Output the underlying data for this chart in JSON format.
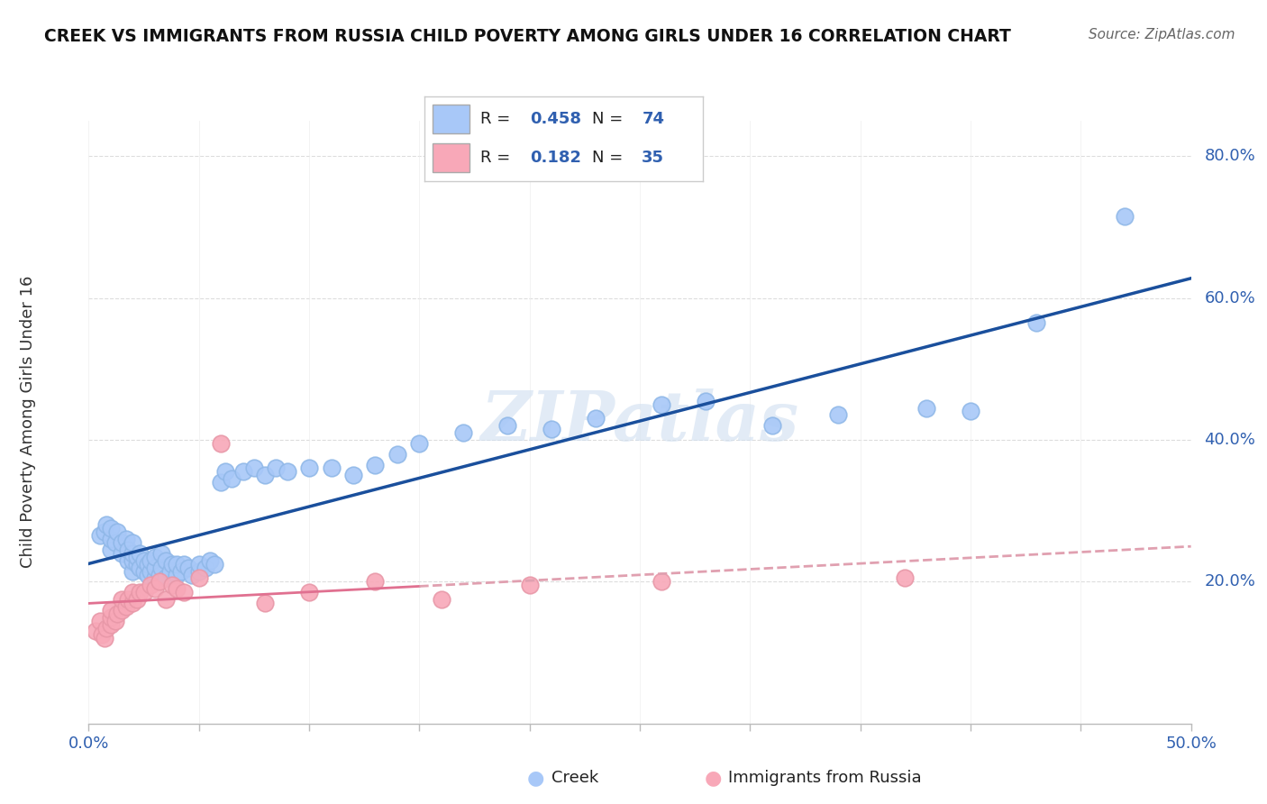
{
  "title": "CREEK VS IMMIGRANTS FROM RUSSIA CHILD POVERTY AMONG GIRLS UNDER 16 CORRELATION CHART",
  "source": "Source: ZipAtlas.com",
  "ylabel": "Child Poverty Among Girls Under 16",
  "xlim": [
    0.0,
    0.5
  ],
  "ylim": [
    0.0,
    0.85
  ],
  "xtick_positions": [
    0.0,
    0.05,
    0.1,
    0.15,
    0.2,
    0.25,
    0.3,
    0.35,
    0.4,
    0.45,
    0.5
  ],
  "xticklabels": [
    "0.0%",
    "",
    "",
    "",
    "",
    "",
    "",
    "",
    "",
    "",
    "50.0%"
  ],
  "ytick_positions": [
    0.2,
    0.4,
    0.6,
    0.8
  ],
  "ytick_labels": [
    "20.0%",
    "40.0%",
    "60.0%",
    "80.0%"
  ],
  "creek_R": 0.458,
  "creek_N": 74,
  "russia_R": 0.182,
  "russia_N": 35,
  "creek_color": "#a8c8f8",
  "russia_color": "#f8a8b8",
  "creek_line_color": "#1a4f9c",
  "russia_line_color": "#e07090",
  "russia_dash_color": "#e0a0b0",
  "background_color": "#ffffff",
  "watermark": "ZIPatlas",
  "creek_x": [
    0.005,
    0.007,
    0.008,
    0.01,
    0.01,
    0.01,
    0.012,
    0.013,
    0.015,
    0.015,
    0.017,
    0.018,
    0.018,
    0.02,
    0.02,
    0.02,
    0.02,
    0.022,
    0.022,
    0.023,
    0.023,
    0.025,
    0.025,
    0.027,
    0.027,
    0.028,
    0.028,
    0.03,
    0.03,
    0.03,
    0.032,
    0.033,
    0.033,
    0.035,
    0.035,
    0.037,
    0.038,
    0.04,
    0.04,
    0.042,
    0.043,
    0.045,
    0.047,
    0.05,
    0.05,
    0.053,
    0.055,
    0.057,
    0.06,
    0.062,
    0.065,
    0.07,
    0.075,
    0.08,
    0.085,
    0.09,
    0.1,
    0.11,
    0.12,
    0.13,
    0.14,
    0.15,
    0.17,
    0.19,
    0.21,
    0.23,
    0.26,
    0.28,
    0.31,
    0.34,
    0.38,
    0.4,
    0.43,
    0.47
  ],
  "creek_y": [
    0.265,
    0.27,
    0.28,
    0.245,
    0.26,
    0.275,
    0.255,
    0.27,
    0.24,
    0.255,
    0.26,
    0.23,
    0.245,
    0.215,
    0.23,
    0.24,
    0.255,
    0.225,
    0.235,
    0.22,
    0.24,
    0.215,
    0.23,
    0.21,
    0.225,
    0.215,
    0.23,
    0.205,
    0.22,
    0.235,
    0.21,
    0.22,
    0.24,
    0.205,
    0.23,
    0.215,
    0.225,
    0.21,
    0.225,
    0.215,
    0.225,
    0.22,
    0.21,
    0.215,
    0.225,
    0.22,
    0.23,
    0.225,
    0.34,
    0.355,
    0.345,
    0.355,
    0.36,
    0.35,
    0.36,
    0.355,
    0.36,
    0.36,
    0.35,
    0.365,
    0.38,
    0.395,
    0.41,
    0.42,
    0.415,
    0.43,
    0.45,
    0.455,
    0.42,
    0.435,
    0.445,
    0.44,
    0.565,
    0.715
  ],
  "russia_x": [
    0.003,
    0.005,
    0.006,
    0.007,
    0.008,
    0.01,
    0.01,
    0.01,
    0.012,
    0.013,
    0.015,
    0.015,
    0.017,
    0.018,
    0.02,
    0.02,
    0.022,
    0.023,
    0.025,
    0.028,
    0.03,
    0.032,
    0.035,
    0.038,
    0.04,
    0.043,
    0.05,
    0.06,
    0.08,
    0.1,
    0.13,
    0.16,
    0.2,
    0.26,
    0.37
  ],
  "russia_y": [
    0.13,
    0.145,
    0.125,
    0.12,
    0.135,
    0.14,
    0.15,
    0.16,
    0.145,
    0.155,
    0.16,
    0.175,
    0.165,
    0.175,
    0.17,
    0.185,
    0.175,
    0.185,
    0.185,
    0.195,
    0.19,
    0.2,
    0.175,
    0.195,
    0.19,
    0.185,
    0.205,
    0.395,
    0.17,
    0.185,
    0.2,
    0.175,
    0.195,
    0.2,
    0.205
  ]
}
